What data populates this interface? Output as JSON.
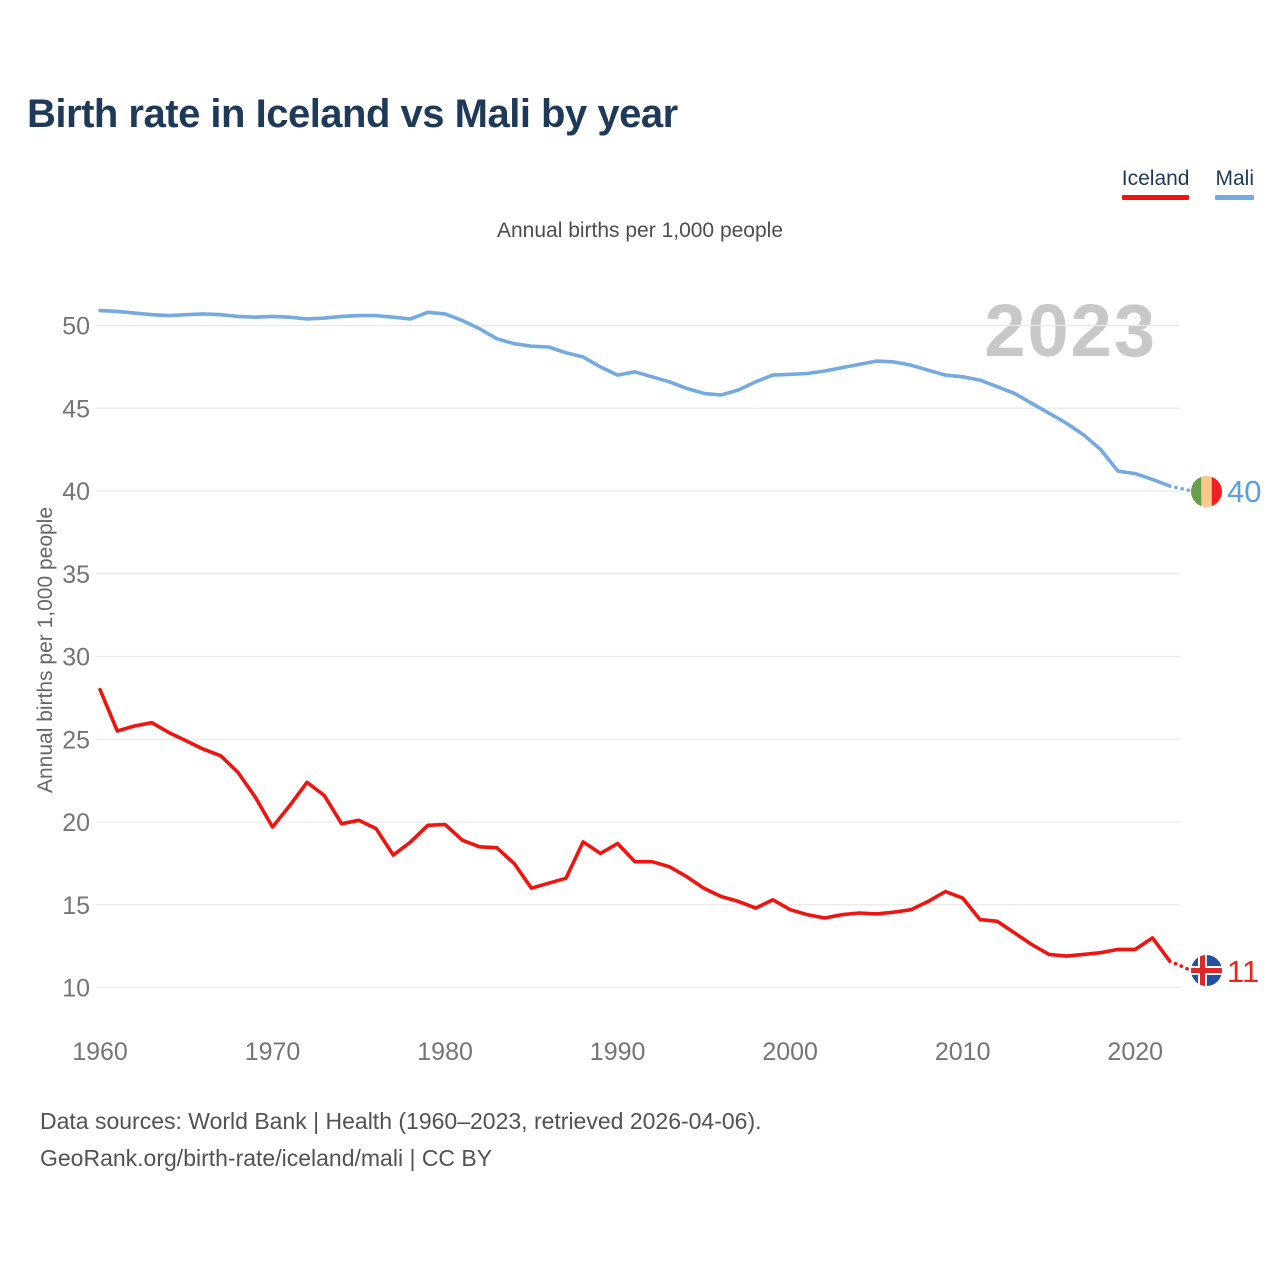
{
  "title": "Birth rate in Iceland vs Mali by year",
  "subtitle": "Annual births per 1,000 people",
  "watermark": "2023",
  "y_axis_title": "Annual births per 1,000 people",
  "legend": {
    "items": [
      {
        "label": "Iceland",
        "color": "#ee1511"
      },
      {
        "label": "Mali",
        "color": "#74aadf"
      }
    ]
  },
  "footer": {
    "line1": "Data sources: World Bank | Health (1960–2023, retrieved 2026-04-06).",
    "line2": "GeoRank.org/birth-rate/iceland/mali | CC BY"
  },
  "chart_data": {
    "type": "line",
    "title": "Birth rate in Iceland vs Mali by year",
    "ylabel": "Annual births per 1,000 people",
    "xlabel": "",
    "grid": "horizontal",
    "legend_position": "top-right",
    "ylim": [
      8.5,
      52
    ],
    "xlim": [
      1960,
      2023
    ],
    "yticks": [
      10,
      15,
      20,
      25,
      30,
      35,
      40,
      45,
      50
    ],
    "xticks": [
      1960,
      1970,
      1980,
      1990,
      2000,
      2010,
      2020
    ],
    "x": [
      1960,
      1961,
      1962,
      1963,
      1964,
      1965,
      1966,
      1967,
      1968,
      1969,
      1970,
      1971,
      1972,
      1973,
      1974,
      1975,
      1976,
      1977,
      1978,
      1979,
      1980,
      1981,
      1982,
      1983,
      1984,
      1985,
      1986,
      1987,
      1988,
      1989,
      1990,
      1991,
      1992,
      1993,
      1994,
      1995,
      1996,
      1997,
      1998,
      1999,
      2000,
      2001,
      2002,
      2003,
      2004,
      2005,
      2006,
      2007,
      2008,
      2009,
      2010,
      2011,
      2012,
      2013,
      2014,
      2015,
      2016,
      2017,
      2018,
      2019,
      2020,
      2021,
      2022,
      2023
    ],
    "series": [
      {
        "name": "Mali",
        "color": "#74aadf",
        "end_label": "40",
        "end_label_color": "#5b9fe3",
        "flag": "mali-flag",
        "values": [
          50.9,
          50.85,
          50.75,
          50.65,
          50.6,
          50.65,
          50.7,
          50.65,
          50.55,
          50.5,
          50.55,
          50.5,
          50.4,
          50.45,
          50.55,
          50.6,
          50.6,
          50.5,
          50.4,
          50.8,
          50.7,
          50.3,
          49.8,
          49.2,
          48.9,
          48.75,
          48.7,
          48.35,
          48.1,
          47.5,
          47.0,
          47.2,
          46.9,
          46.6,
          46.2,
          45.9,
          45.8,
          46.1,
          46.6,
          47.0,
          47.05,
          47.1,
          47.25,
          47.45,
          47.65,
          47.85,
          47.8,
          47.6,
          47.3,
          47.0,
          46.9,
          46.7,
          46.3,
          45.9,
          45.3,
          44.7,
          44.1,
          43.4,
          42.5,
          41.2,
          41.05,
          40.7,
          40.3,
          40.0
        ]
      },
      {
        "name": "Iceland",
        "color": "#ee1511",
        "end_label": "11",
        "end_label_color": "#e8261f",
        "flag": "iceland-flag",
        "values": [
          28.0,
          25.5,
          25.8,
          26.0,
          25.4,
          24.9,
          24.4,
          24.0,
          23.0,
          21.5,
          19.7,
          21.0,
          22.4,
          21.6,
          19.9,
          20.1,
          19.6,
          18.0,
          18.8,
          19.8,
          19.85,
          18.9,
          18.5,
          18.45,
          17.5,
          16.0,
          16.3,
          16.6,
          18.8,
          18.1,
          18.7,
          17.6,
          17.6,
          17.3,
          16.7,
          16.0,
          15.5,
          15.2,
          14.8,
          15.3,
          14.7,
          14.4,
          14.2,
          14.4,
          14.5,
          14.45,
          14.55,
          14.7,
          15.2,
          15.8,
          15.4,
          14.1,
          14.0,
          13.3,
          12.6,
          12.0,
          11.9,
          12.0,
          12.1,
          12.3,
          12.3,
          13.0,
          11.6,
          11.0
        ]
      }
    ]
  }
}
